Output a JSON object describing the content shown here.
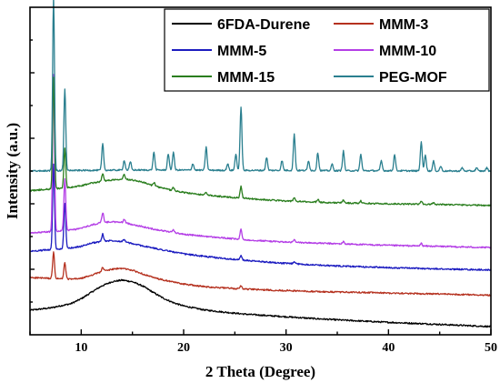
{
  "chart_data": {
    "type": "line",
    "xlabel": "2 Theta (Degree)",
    "ylabel": "Intensity (a.u.)",
    "xlim": [
      5,
      50
    ],
    "ylim": [
      0,
      100
    ],
    "x_ticks": [
      10,
      20,
      30,
      40,
      50
    ],
    "y_ticks_labeled": false,
    "grid": false,
    "legend_position": "top-right",
    "series": [
      {
        "name": "6FDA-Durene",
        "color": "#000000",
        "x": [
          5,
          7,
          9,
          10,
          11,
          12,
          13,
          14,
          15,
          16,
          17,
          18,
          19,
          20,
          22,
          24,
          26,
          28,
          30,
          33,
          36,
          40,
          44,
          47,
          50
        ],
        "y": [
          7.5,
          8.2,
          9.5,
          11,
          13,
          14.9,
          16.2,
          16.7,
          16.2,
          14.9,
          13,
          11.2,
          9.8,
          8.8,
          7.6,
          6.9,
          6.3,
          5.9,
          5.5,
          4.9,
          4.4,
          3.8,
          3.3,
          2.9,
          2.5
        ],
        "peaks": []
      },
      {
        "name": "MMM-3",
        "color": "#b5311f",
        "x": [
          5,
          7,
          9,
          10,
          11,
          12,
          13,
          14,
          15,
          16,
          17,
          18,
          20,
          22,
          25,
          28,
          31,
          34,
          38,
          42,
          46,
          50
        ],
        "y": [
          17.5,
          17.2,
          17,
          17.2,
          18.2,
          19.3,
          20,
          20.3,
          19.7,
          18.6,
          17.5,
          16.7,
          15.5,
          14.7,
          14.1,
          13.7,
          13.4,
          13.1,
          12.9,
          12.6,
          12.4,
          12.1
        ],
        "peaks": [
          {
            "x": 7.3,
            "h": 8
          },
          {
            "x": 8.4,
            "h": 5
          },
          {
            "x": 12.1,
            "h": 1.2
          },
          {
            "x": 25.6,
            "h": 1
          }
        ]
      },
      {
        "name": "MMM-5",
        "color": "#1c1cc0",
        "x": [
          5,
          7,
          9,
          10,
          11,
          12,
          13,
          14,
          15,
          17,
          20,
          23,
          26,
          30,
          35,
          40,
          45,
          50
        ],
        "y": [
          25.5,
          26,
          26.5,
          27,
          28,
          28.5,
          28.8,
          28.5,
          27.8,
          26.5,
          24.7,
          23.6,
          22.7,
          21.8,
          21,
          20.5,
          20.1,
          19.8
        ],
        "peaks": [
          {
            "x": 7.3,
            "h": 26
          },
          {
            "x": 8.4,
            "h": 14
          },
          {
            "x": 12.1,
            "h": 2.2
          },
          {
            "x": 14.2,
            "h": 0.8
          },
          {
            "x": 25.6,
            "h": 1.4
          },
          {
            "x": 30.8,
            "h": 0.6
          }
        ]
      },
      {
        "name": "MMM-10",
        "color": "#b43ee6",
        "x": [
          5,
          7,
          9,
          10,
          11,
          12,
          13,
          14,
          15,
          17,
          20,
          23,
          26,
          30,
          35,
          40,
          45,
          50
        ],
        "y": [
          31,
          31.5,
          32,
          32.5,
          33.5,
          34.3,
          34.5,
          34.3,
          33.7,
          32.3,
          30.7,
          29.8,
          29,
          28.3,
          27.8,
          27.3,
          27,
          26.6
        ],
        "peaks": [
          {
            "x": 7.3,
            "h": 48
          },
          {
            "x": 8.4,
            "h": 16
          },
          {
            "x": 12.1,
            "h": 3
          },
          {
            "x": 14.2,
            "h": 1.1
          },
          {
            "x": 19,
            "h": 0.9
          },
          {
            "x": 25.6,
            "h": 3
          },
          {
            "x": 30.8,
            "h": 0.8
          },
          {
            "x": 35.6,
            "h": 0.7
          },
          {
            "x": 43.2,
            "h": 0.8
          }
        ]
      },
      {
        "name": "MMM-15",
        "color": "#2a7e1e",
        "x": [
          5,
          7,
          9,
          10,
          11,
          12,
          13,
          14,
          15,
          16,
          17,
          19,
          21,
          23,
          25,
          28,
          31,
          35,
          40,
          45,
          50
        ],
        "y": [
          44,
          44.5,
          45,
          45.5,
          46.3,
          46.8,
          47.3,
          47.6,
          47.3,
          46.6,
          45.5,
          44,
          43,
          42.4,
          41.9,
          41.2,
          40.7,
          40.3,
          40,
          39.8,
          39.5
        ],
        "peaks": [
          {
            "x": 7.3,
            "h": 34
          },
          {
            "x": 8.4,
            "h": 12
          },
          {
            "x": 12.1,
            "h": 2.5
          },
          {
            "x": 14.2,
            "h": 1.4
          },
          {
            "x": 17.1,
            "h": 1.1
          },
          {
            "x": 19,
            "h": 1
          },
          {
            "x": 22.2,
            "h": 0.9
          },
          {
            "x": 25.6,
            "h": 3.5
          },
          {
            "x": 30.8,
            "h": 1.2
          },
          {
            "x": 33.1,
            "h": 0.8
          },
          {
            "x": 35.6,
            "h": 0.9
          },
          {
            "x": 37.3,
            "h": 0.7
          },
          {
            "x": 43.2,
            "h": 1
          },
          {
            "x": 44.4,
            "h": 0.6
          }
        ]
      },
      {
        "name": "PEG-MOF",
        "color": "#2a7f8f",
        "x": [
          5,
          10,
          15,
          20,
          25,
          30,
          35,
          40,
          45,
          50
        ],
        "y": [
          50,
          50.2,
          50.3,
          50.3,
          50.2,
          50.2,
          50.1,
          50.1,
          50,
          50
        ],
        "peaks": [
          {
            "x": 7.3,
            "h": 53
          },
          {
            "x": 8.4,
            "h": 25
          },
          {
            "x": 12.1,
            "h": 8
          },
          {
            "x": 14.2,
            "h": 3
          },
          {
            "x": 14.8,
            "h": 2.5
          },
          {
            "x": 17.1,
            "h": 5.5
          },
          {
            "x": 18.5,
            "h": 5
          },
          {
            "x": 19,
            "h": 5.5
          },
          {
            "x": 20.9,
            "h": 2
          },
          {
            "x": 22.2,
            "h": 7
          },
          {
            "x": 24.3,
            "h": 2
          },
          {
            "x": 25.1,
            "h": 5
          },
          {
            "x": 25.6,
            "h": 19.5
          },
          {
            "x": 28.1,
            "h": 4
          },
          {
            "x": 29.6,
            "h": 3
          },
          {
            "x": 30.8,
            "h": 11
          },
          {
            "x": 32.2,
            "h": 3
          },
          {
            "x": 33.1,
            "h": 5.5
          },
          {
            "x": 34.5,
            "h": 2
          },
          {
            "x": 35.6,
            "h": 6
          },
          {
            "x": 37.3,
            "h": 5
          },
          {
            "x": 39.3,
            "h": 3
          },
          {
            "x": 40.6,
            "h": 5
          },
          {
            "x": 43.2,
            "h": 9
          },
          {
            "x": 43.6,
            "h": 5
          },
          {
            "x": 44.4,
            "h": 3
          },
          {
            "x": 45.1,
            "h": 1.5
          },
          {
            "x": 47.2,
            "h": 1
          },
          {
            "x": 48.6,
            "h": 1
          },
          {
            "x": 49.6,
            "h": 1
          }
        ]
      }
    ]
  }
}
